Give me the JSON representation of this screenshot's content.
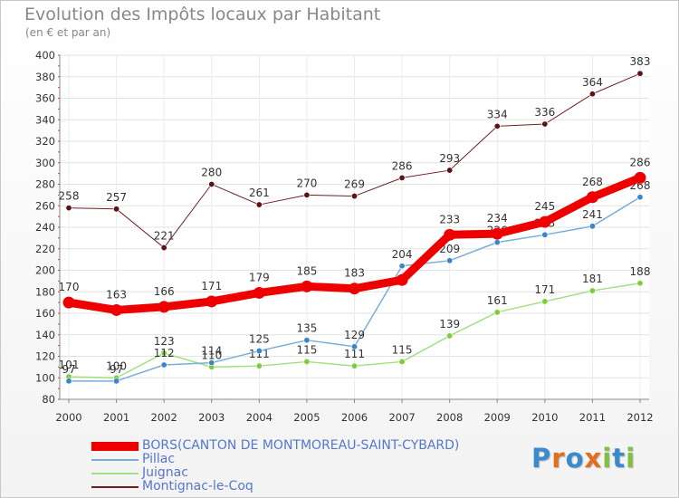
{
  "title": "Evolution des Impôts locaux par Habitant",
  "subtitle": "(en € et par an)",
  "chart_data": {
    "type": "line",
    "x": [
      "2000",
      "2001",
      "2002",
      "2003",
      "2004",
      "2005",
      "2006",
      "2007",
      "2008",
      "2009",
      "2010",
      "2011",
      "2012"
    ],
    "ylim": [
      80,
      400
    ],
    "yticks": [
      80,
      100,
      120,
      140,
      160,
      180,
      200,
      220,
      240,
      260,
      280,
      300,
      320,
      340,
      360,
      380,
      400
    ],
    "grid": true,
    "legend_position": "bottom-left",
    "series": [
      {
        "name": "Montignac-le-Coq",
        "color": "#6e1e22",
        "width": 1,
        "marker_color": "#5a1418",
        "values": [
          258,
          257,
          221,
          280,
          261,
          270,
          269,
          286,
          293,
          334,
          336,
          364,
          383
        ],
        "labels": [
          "258",
          "257",
          "221",
          "280",
          "261",
          "270",
          "269",
          "286",
          "293",
          "334",
          "336",
          "364",
          "383"
        ],
        "label_above": true
      },
      {
        "name": "Juignac",
        "color": "#a0e080",
        "width": 1.5,
        "marker_color": "#7ccc3c",
        "values": [
          101,
          100,
          123,
          110,
          111,
          115,
          111,
          115,
          139,
          161,
          171,
          181,
          188
        ],
        "labels": [
          "101",
          "100",
          "123",
          "110",
          "111",
          "115",
          "111",
          "115",
          "139",
          "161",
          "171",
          "181",
          "188"
        ],
        "label_above": true
      },
      {
        "name": "Pillac",
        "color": "#7aaed8",
        "width": 1.5,
        "marker_color": "#3a86c8",
        "values": [
          97,
          97,
          112,
          114,
          125,
          135,
          129,
          204,
          209,
          226,
          233,
          241,
          268
        ],
        "labels": [
          "97",
          "97",
          "112",
          "114",
          "125",
          "135",
          "129",
          "204",
          "209",
          "226",
          "233",
          "241",
          "268"
        ],
        "label_above": true
      },
      {
        "name": "BORS(CANTON DE MONTMOREAU-SAINT-CYBARD)",
        "color": "#ee0000",
        "width": 9,
        "marker_color": "#ee0000",
        "values": [
          170,
          163,
          166,
          171,
          179,
          185,
          183,
          191,
          233,
          234,
          245,
          268,
          286
        ],
        "labels": [
          "170",
          "163",
          "166",
          "171",
          "179",
          "185",
          "183",
          "",
          "233",
          "234",
          "245",
          "268",
          "286"
        ],
        "label_above": true
      }
    ]
  },
  "legend": [
    {
      "label": "BORS(CANTON DE MONTMOREAU-SAINT-CYBARD)",
      "color": "#ee0000",
      "thickness": 10
    },
    {
      "label": "Pillac",
      "color": "#7aaed8",
      "thickness": 2
    },
    {
      "label": "Juignac",
      "color": "#a0e080",
      "thickness": 2
    },
    {
      "label": "Montignac-le-Coq",
      "color": "#6e1e22",
      "thickness": 2
    }
  ],
  "logo": {
    "text": "Proxiti",
    "letters": [
      {
        "ch": "P",
        "color": "#3a8ad0"
      },
      {
        "ch": "r",
        "color": "#e07020"
      },
      {
        "ch": "o",
        "color": "#3a8ad0"
      },
      {
        "ch": "x",
        "color": "#e07020"
      },
      {
        "ch": "i",
        "color": "#80c040"
      },
      {
        "ch": "t",
        "color": "#3a8ad0"
      },
      {
        "ch": "i",
        "color": "#80c040"
      }
    ]
  }
}
